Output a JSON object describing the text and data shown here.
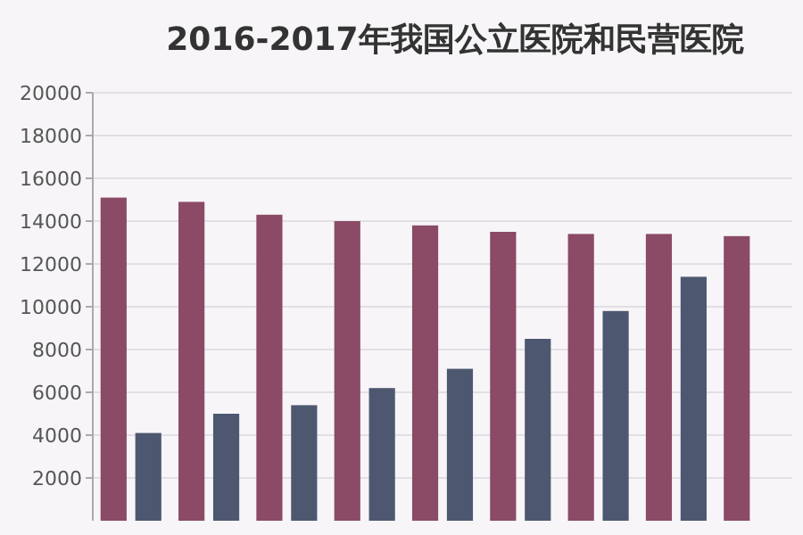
{
  "chart_data": {
    "type": "bar",
    "title": "2016-2017年我国公立医院和民营医院",
    "categories": [
      null,
      null,
      null,
      null,
      null,
      null,
      null,
      null,
      null
    ],
    "series": [
      {
        "color": "#8b4a66",
        "values": [
          15100,
          14900,
          14300,
          14000,
          13800,
          13500,
          13400,
          13400,
          13300
        ]
      },
      {
        "color": "#4d5870",
        "values": [
          4100,
          5000,
          5400,
          6200,
          7100,
          8500,
          9800,
          11400,
          null
        ]
      }
    ],
    "ylim": [
      0,
      20000
    ],
    "yticks": [
      2000,
      4000,
      6000,
      8000,
      10000,
      12000,
      14000,
      16000,
      18000,
      20000
    ],
    "grid": "y"
  }
}
